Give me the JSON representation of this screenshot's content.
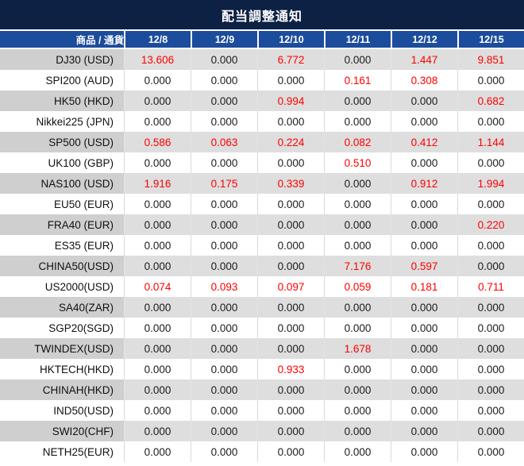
{
  "title": "配当調整通知",
  "colors": {
    "title_bar_bg": "#0c2143",
    "header_bg": "#1c4c9c",
    "row_gray_label": "#cfcfcf",
    "row_gray_value": "#dedede",
    "value_red": "#fe0000",
    "value_black": "#1b1b1b"
  },
  "table": {
    "product_header": "商品 / 通貨",
    "date_headers": [
      "12/8",
      "12/9",
      "12/10",
      "12/11",
      "12/12",
      "12/15"
    ],
    "rows": [
      {
        "label": "DJ30 (USD)",
        "values": [
          "13.606",
          "0.000",
          "6.772",
          "0.000",
          "1.447",
          "9.851"
        ],
        "red": [
          true,
          false,
          true,
          false,
          true,
          true
        ]
      },
      {
        "label": "SPI200 (AUD)",
        "values": [
          "0.000",
          "0.000",
          "0.000",
          "0.161",
          "0.308",
          "0.000"
        ],
        "red": [
          false,
          false,
          false,
          true,
          true,
          false
        ]
      },
      {
        "label": "HK50 (HKD)",
        "values": [
          "0.000",
          "0.000",
          "0.994",
          "0.000",
          "0.000",
          "0.682"
        ],
        "red": [
          false,
          false,
          true,
          false,
          false,
          true
        ]
      },
      {
        "label": "Nikkei225 (JPN)",
        "values": [
          "0.000",
          "0.000",
          "0.000",
          "0.000",
          "0.000",
          "0.000"
        ],
        "red": [
          false,
          false,
          false,
          false,
          false,
          false
        ]
      },
      {
        "label": "SP500 (USD)",
        "values": [
          "0.586",
          "0.063",
          "0.224",
          "0.082",
          "0.412",
          "1.144"
        ],
        "red": [
          true,
          true,
          true,
          true,
          true,
          true
        ]
      },
      {
        "label": "UK100 (GBP)",
        "values": [
          "0.000",
          "0.000",
          "0.000",
          "0.510",
          "0.000",
          "0.000"
        ],
        "red": [
          false,
          false,
          false,
          true,
          false,
          false
        ]
      },
      {
        "label": "NAS100 (USD)",
        "values": [
          "1.916",
          "0.175",
          "0.339",
          "0.000",
          "0.912",
          "1.994"
        ],
        "red": [
          true,
          true,
          true,
          false,
          true,
          true
        ]
      },
      {
        "label": "EU50 (EUR)",
        "values": [
          "0.000",
          "0.000",
          "0.000",
          "0.000",
          "0.000",
          "0.000"
        ],
        "red": [
          false,
          false,
          false,
          false,
          false,
          false
        ]
      },
      {
        "label": "FRA40 (EUR)",
        "values": [
          "0.000",
          "0.000",
          "0.000",
          "0.000",
          "0.000",
          "0.220"
        ],
        "red": [
          false,
          false,
          false,
          false,
          false,
          true
        ]
      },
      {
        "label": "ES35 (EUR)",
        "values": [
          "0.000",
          "0.000",
          "0.000",
          "0.000",
          "0.000",
          "0.000"
        ],
        "red": [
          false,
          false,
          false,
          false,
          false,
          false
        ]
      },
      {
        "label": "CHINA50(USD)",
        "values": [
          "0.000",
          "0.000",
          "0.000",
          "7.176",
          "0.597",
          "0.000"
        ],
        "red": [
          false,
          false,
          false,
          true,
          true,
          false
        ]
      },
      {
        "label": "US2000(USD)",
        "values": [
          "0.074",
          "0.093",
          "0.097",
          "0.059",
          "0.181",
          "0.711"
        ],
        "red": [
          true,
          true,
          true,
          true,
          true,
          true
        ]
      },
      {
        "label": "SA40(ZAR)",
        "values": [
          "0.000",
          "0.000",
          "0.000",
          "0.000",
          "0.000",
          "0.000"
        ],
        "red": [
          false,
          false,
          false,
          false,
          false,
          false
        ]
      },
      {
        "label": "SGP20(SGD)",
        "values": [
          "0.000",
          "0.000",
          "0.000",
          "0.000",
          "0.000",
          "0.000"
        ],
        "red": [
          false,
          false,
          false,
          false,
          false,
          false
        ]
      },
      {
        "label": "TWINDEX(USD)",
        "values": [
          "0.000",
          "0.000",
          "0.000",
          "1.678",
          "0.000",
          "0.000"
        ],
        "red": [
          false,
          false,
          false,
          true,
          false,
          false
        ]
      },
      {
        "label": "HKTECH(HKD)",
        "values": [
          "0.000",
          "0.000",
          "0.933",
          "0.000",
          "0.000",
          "0.000"
        ],
        "red": [
          false,
          false,
          true,
          false,
          false,
          false
        ]
      },
      {
        "label": "CHINAH(HKD)",
        "values": [
          "0.000",
          "0.000",
          "0.000",
          "0.000",
          "0.000",
          "0.000"
        ],
        "red": [
          false,
          false,
          false,
          false,
          false,
          false
        ]
      },
      {
        "label": "IND50(USD)",
        "values": [
          "0.000",
          "0.000",
          "0.000",
          "0.000",
          "0.000",
          "0.000"
        ],
        "red": [
          false,
          false,
          false,
          false,
          false,
          false
        ]
      },
      {
        "label": "SWI20(CHF)",
        "values": [
          "0.000",
          "0.000",
          "0.000",
          "0.000",
          "0.000",
          "0.000"
        ],
        "red": [
          false,
          false,
          false,
          false,
          false,
          false
        ]
      },
      {
        "label": "NETH25(EUR)",
        "values": [
          "0.000",
          "0.000",
          "0.000",
          "0.000",
          "0.000",
          "0.000"
        ],
        "red": [
          false,
          false,
          false,
          false,
          false,
          false
        ]
      }
    ]
  }
}
